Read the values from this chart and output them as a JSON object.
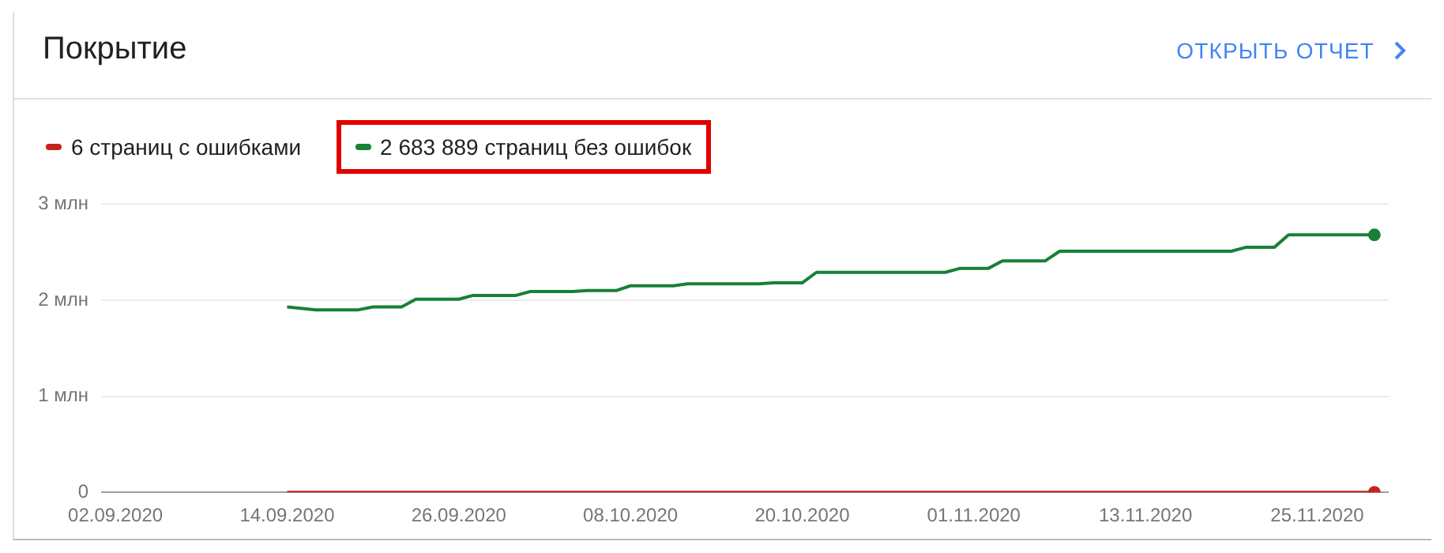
{
  "chart_data": {
    "type": "line",
    "title": "Покрытие",
    "annotations": [
      "ОТКРЫТЬ ОТЧЕТ"
    ],
    "legend": "top left",
    "grid": "y",
    "line_style": "solid",
    "xlim": [
      "2020-09-01",
      "2020-11-30"
    ],
    "xticks": [
      {
        "value": "2020-09-02",
        "label": "02.09.2020"
      },
      {
        "value": "2020-09-14",
        "label": "14.09.2020"
      },
      {
        "value": "2020-09-26",
        "label": "26.09.2020"
      },
      {
        "value": "2020-10-08",
        "label": "08.10.2020"
      },
      {
        "value": "2020-10-20",
        "label": "20.10.2020"
      },
      {
        "value": "2020-11-01",
        "label": "01.11.2020"
      },
      {
        "value": "2020-11-13",
        "label": "13.11.2020"
      },
      {
        "value": "2020-11-25",
        "label": "25.11.2020"
      }
    ],
    "ylim": [
      0,
      3
    ],
    "yticks": [
      0,
      {
        "value": 1,
        "label": "1 млн"
      },
      {
        "value": 2,
        "label": "2 млн"
      },
      {
        "value": 3,
        "label": "3 млн"
      }
    ],
    "series": [
      {
        "name": "6 страниц с ошибками",
        "color": "#c5221f",
        "x": [
          "2020-09-14",
          "2020-11-29"
        ],
        "values": [
          0,
          0
        ]
      },
      {
        "name": "2 683 889 страниц без ошибок",
        "color": "#188038",
        "x": [
          "2020-09-14",
          "2020-09-16",
          "2020-09-19",
          "2020-09-20",
          "2020-09-22",
          "2020-09-23",
          "2020-09-26",
          "2020-09-27",
          "2020-09-30",
          "2020-10-01",
          "2020-10-04",
          "2020-10-05",
          "2020-10-07",
          "2020-10-08",
          "2020-10-11",
          "2020-10-12",
          "2020-10-17",
          "2020-10-18",
          "2020-10-20",
          "2020-10-21",
          "2020-10-30",
          "2020-10-31",
          "2020-11-02",
          "2020-11-03",
          "2020-11-06",
          "2020-11-07",
          "2020-11-19",
          "2020-11-20",
          "2020-11-22",
          "2020-11-23",
          "2020-11-29"
        ],
        "values": [
          1.93,
          1.9,
          1.9,
          1.93,
          1.93,
          2.01,
          2.01,
          2.05,
          2.05,
          2.09,
          2.09,
          2.1,
          2.1,
          2.15,
          2.15,
          2.17,
          2.17,
          2.18,
          2.18,
          2.29,
          2.29,
          2.33,
          2.33,
          2.41,
          2.41,
          2.51,
          2.51,
          2.55,
          2.55,
          2.68,
          2.68
        ]
      },
      {
        "type": "scatter",
        "color": "#c5221f",
        "x": [
          "2020-11-29"
        ],
        "values": [
          0
        ]
      },
      {
        "type": "scatter",
        "color": "#188038",
        "x": [
          "2020-11-29"
        ],
        "values": [
          2.68
        ]
      }
    ]
  }
}
